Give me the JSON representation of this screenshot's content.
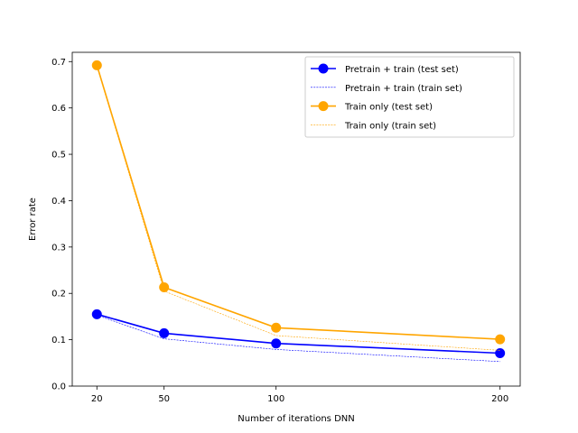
{
  "chart_data": {
    "type": "line",
    "title": "",
    "xlabel": "Number of iterations DNN",
    "ylabel": "Error rate",
    "x": [
      20,
      50,
      100,
      200
    ],
    "xticks": [
      "20",
      "50",
      "100",
      "200"
    ],
    "xlim": [
      9,
      209
    ],
    "ylim": [
      0,
      0.72
    ],
    "yticks": [
      "0.0",
      "0.1",
      "0.2",
      "0.3",
      "0.4",
      "0.5",
      "0.6",
      "0.7"
    ],
    "grid": false,
    "legend_position": "top-right",
    "series": [
      {
        "name": "Pretrain + train (test set)",
        "color": "#0000ff",
        "style": "solid-marker",
        "values": [
          0.155,
          0.114,
          0.092,
          0.071
        ]
      },
      {
        "name": "Pretrain + train (train set)",
        "color": "#0000ff",
        "style": "dashed-thin",
        "values": [
          0.153,
          0.102,
          0.079,
          0.053
        ]
      },
      {
        "name": "Train only (test set)",
        "color": "#ffa500",
        "style": "solid-marker",
        "values": [
          0.692,
          0.213,
          0.126,
          0.101
        ]
      },
      {
        "name": "Train only (train set)",
        "color": "#ffa500",
        "style": "dashed-thin",
        "values": [
          0.69,
          0.205,
          0.109,
          0.077
        ]
      }
    ]
  }
}
